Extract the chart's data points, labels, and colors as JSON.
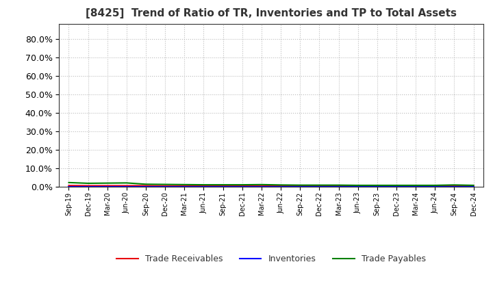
{
  "title": "[8425]  Trend of Ratio of TR, Inventories and TP to Total Assets",
  "x_labels": [
    "Sep-19",
    "Dec-19",
    "Mar-20",
    "Jun-20",
    "Sep-20",
    "Dec-20",
    "Mar-21",
    "Jun-21",
    "Sep-21",
    "Dec-21",
    "Mar-22",
    "Jun-22",
    "Sep-22",
    "Dec-22",
    "Mar-23",
    "Jun-23",
    "Sep-23",
    "Dec-23",
    "Mar-24",
    "Jun-24",
    "Sep-24",
    "Dec-24"
  ],
  "trade_receivables": [
    0.006,
    0.005,
    0.005,
    0.005,
    0.005,
    0.004,
    0.004,
    0.004,
    0.004,
    0.004,
    0.004,
    0.004,
    0.004,
    0.004,
    0.004,
    0.004,
    0.004,
    0.004,
    0.004,
    0.004,
    0.004,
    0.004
  ],
  "inventories": [
    0.0,
    0.0,
    0.0,
    0.0,
    0.0,
    0.0,
    0.0,
    0.0,
    0.0,
    0.0,
    0.0,
    0.0,
    0.0,
    0.0,
    0.0,
    0.0,
    0.0,
    0.0,
    0.0,
    0.0,
    0.0,
    0.0
  ],
  "trade_payables": [
    0.022,
    0.018,
    0.019,
    0.02,
    0.013,
    0.012,
    0.011,
    0.01,
    0.01,
    0.01,
    0.011,
    0.009,
    0.008,
    0.008,
    0.008,
    0.007,
    0.007,
    0.007,
    0.007,
    0.007,
    0.009,
    0.007
  ],
  "tr_color": "#e8000d",
  "inv_color": "#0000ff",
  "tp_color": "#008000",
  "ylim": [
    0.0,
    0.88
  ],
  "yticks": [
    0.0,
    0.1,
    0.2,
    0.3,
    0.4,
    0.5,
    0.6,
    0.7,
    0.8
  ],
  "bg_color": "#ffffff",
  "plot_bg_color": "#ffffff",
  "grid_color": "#bbbbbb",
  "legend_labels": [
    "Trade Receivables",
    "Inventories",
    "Trade Payables"
  ]
}
